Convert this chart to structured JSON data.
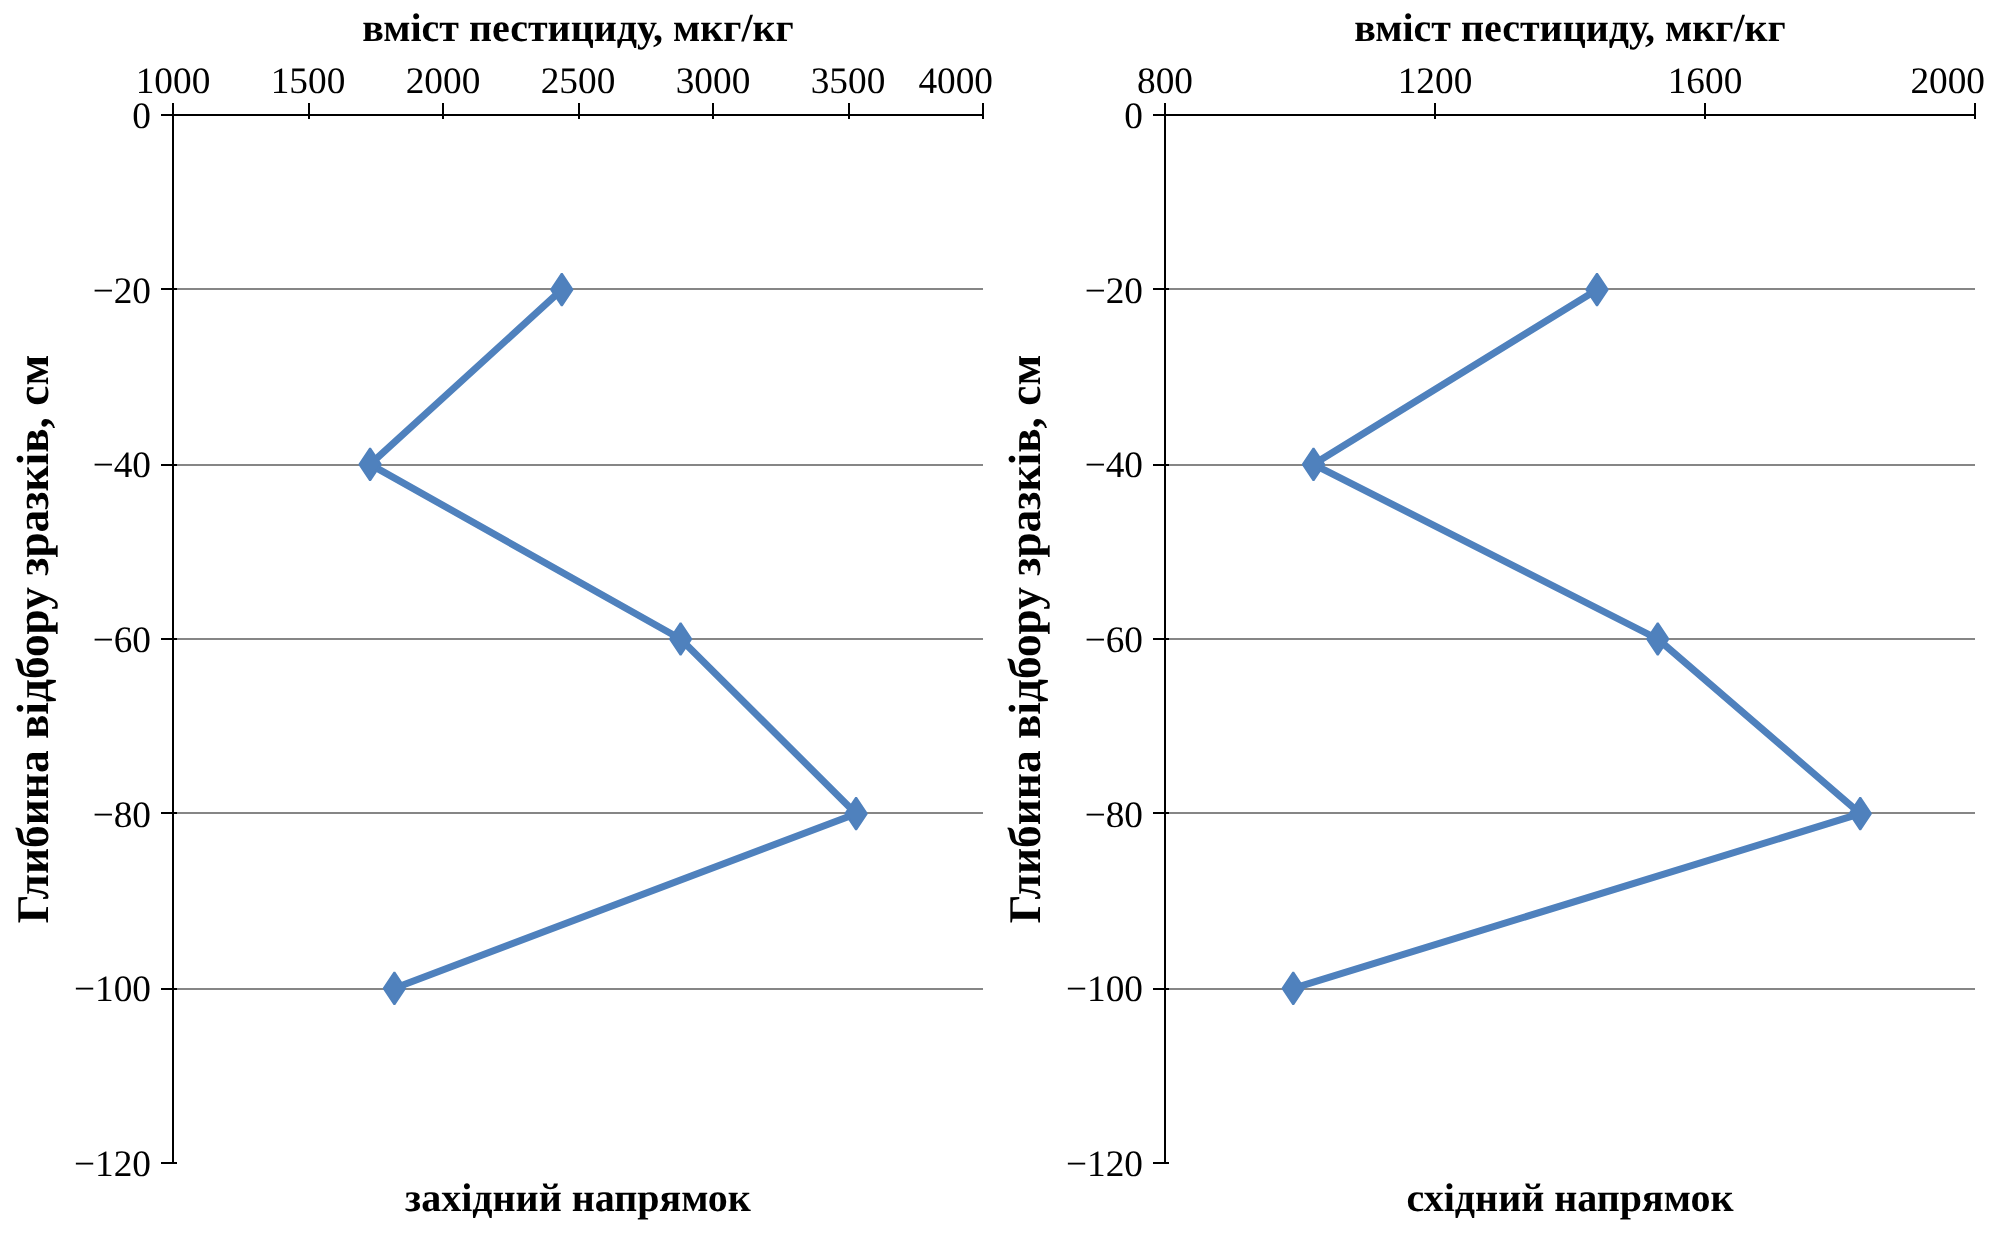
{
  "chart_data": [
    {
      "type": "line",
      "title": "західний напрямок",
      "xlabel": "вміст пестициду, мкг/кг",
      "ylabel": "Глибина відбору зразків, см",
      "orientation": "horizontal",
      "x": [
        -20,
        -40,
        -60,
        -80,
        -100
      ],
      "series": [
        {
          "color": "#4f81bd",
          "values": [
            2440,
            1730,
            2880,
            3530,
            1820
          ]
        }
      ],
      "xlim": [
        1000,
        4000
      ],
      "xticks": [
        1000,
        1500,
        2000,
        2500,
        3000,
        3500,
        4000
      ],
      "ylim": [
        -120,
        0
      ],
      "yticks": [
        0,
        -20,
        -40,
        -60,
        -80,
        -100,
        -120
      ],
      "grid": "y",
      "marker": "diamond",
      "line_style": "solid"
    },
    {
      "type": "line",
      "title": "східний напрямок",
      "xlabel": "вміст пестициду, мкг/кг",
      "ylabel": "Глибина відбору зразків, см",
      "orientation": "horizontal",
      "x": [
        -20,
        -40,
        -60,
        -80,
        -100
      ],
      "series": [
        {
          "color": "#4f81bd",
          "values": [
            1440,
            1020,
            1530,
            1830,
            990
          ]
        }
      ],
      "xlim": [
        800,
        2000
      ],
      "xticks": [
        800,
        1200,
        1600,
        2000
      ],
      "ylim": [
        -120,
        0
      ],
      "yticks": [
        0,
        -20,
        -40,
        -60,
        -80,
        -100,
        -120
      ],
      "grid": "y",
      "marker": "diamond",
      "line_style": "solid"
    }
  ]
}
